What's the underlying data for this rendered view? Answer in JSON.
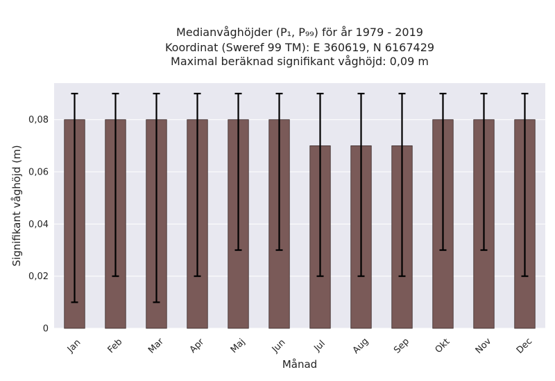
{
  "chart_data": {
    "type": "bar",
    "title_lines": [
      "Medianvåghöjder (P₁, P₉₉) för år 1979 - 2019",
      "Koordinat (Sweref 99 TM): E 360619, N 6167429",
      "Maximal beräknad signifikant våghöjd: 0,09 m"
    ],
    "xlabel": "Månad",
    "ylabel": "Signifikant våghöjd (m)",
    "categories": [
      "Jan",
      "Feb",
      "Mar",
      "Apr",
      "Maj",
      "Jun",
      "Jul",
      "Aug",
      "Sep",
      "Okt",
      "Nov",
      "Dec"
    ],
    "values": [
      0.08,
      0.08,
      0.08,
      0.08,
      0.08,
      0.08,
      0.07,
      0.07,
      0.07,
      0.08,
      0.08,
      0.08
    ],
    "p1": [
      0.01,
      0.02,
      0.01,
      0.02,
      0.03,
      0.03,
      0.02,
      0.02,
      0.02,
      0.03,
      0.03,
      0.02
    ],
    "p99": [
      0.09,
      0.09,
      0.09,
      0.09,
      0.09,
      0.09,
      0.09,
      0.09,
      0.09,
      0.09,
      0.09,
      0.09
    ],
    "ylim": [
      0,
      0.094
    ],
    "yticks": [
      0,
      0.02,
      0.04,
      0.06,
      0.08
    ],
    "ytick_labels": [
      "0",
      "0,02",
      "0,04",
      "0,06",
      "0,08"
    ],
    "grid": true,
    "colors": {
      "bar": "#7a5a58",
      "bar_edge": "#3a2a2a",
      "errorbar": "#000000",
      "plot_background": "#e8e8f0",
      "grid": "#ffffff"
    }
  }
}
